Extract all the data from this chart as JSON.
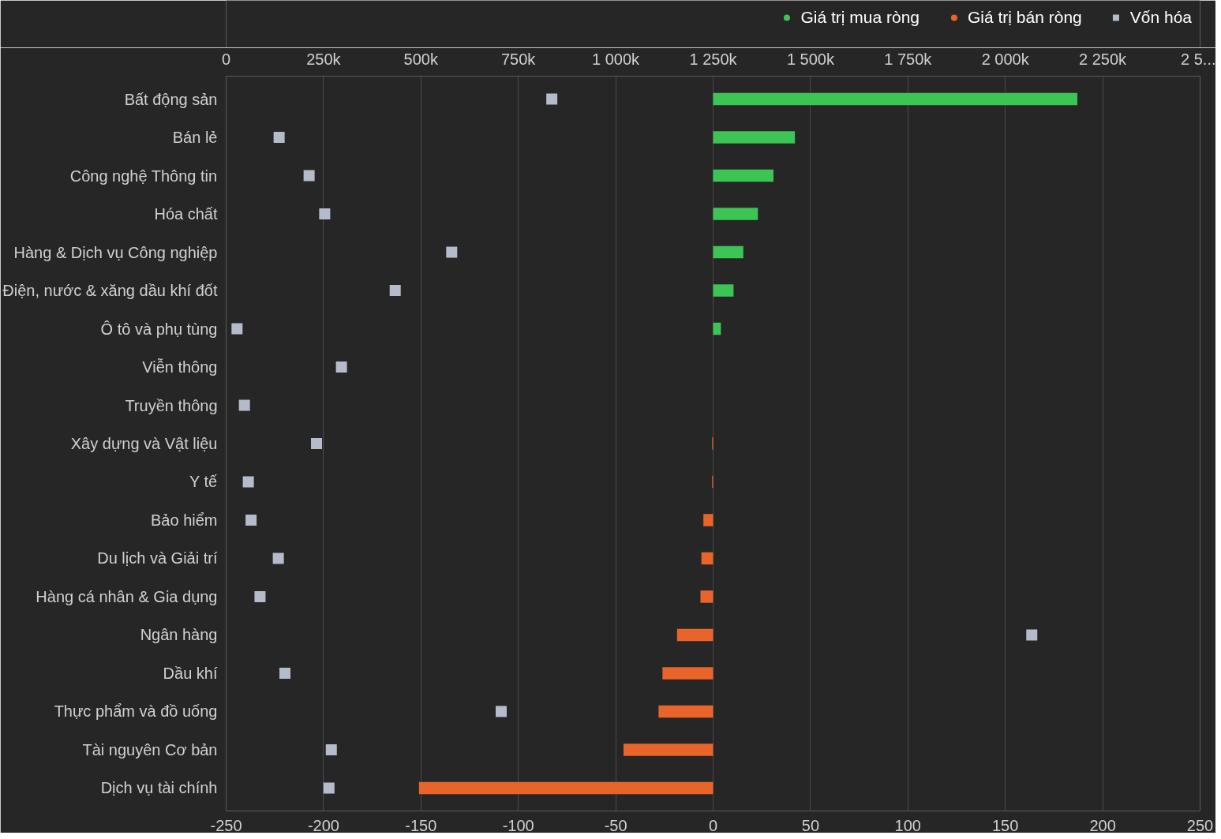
{
  "chart_data": {
    "type": "bar",
    "orientation": "horizontal",
    "legend": "top right",
    "grid": "x",
    "categories": [
      "Bất động sản",
      "Bán lẻ",
      "Công nghệ Thông tin",
      "Hóa chất",
      "Hàng & Dịch vụ Công nghiệp",
      "Điện, nước & xăng dầu khí đốt",
      "Ô tô và phụ tùng",
      "Viễn thông",
      "Truyền thông",
      "Xây dựng và Vật liệu",
      "Y tế",
      "Bảo hiểm",
      "Du lịch và Giải trí",
      "Hàng cá nhân & Gia dụng",
      "Ngân hàng",
      "Dầu khí",
      "Thực phẩm và đồ uống",
      "Tài nguyên Cơ bản",
      "Dịch vụ tài chính"
    ],
    "xlim": [
      -250,
      250
    ],
    "xticks": [
      -250,
      -200,
      -150,
      -100,
      -50,
      0,
      50,
      100,
      150,
      200,
      250
    ],
    "x2lim": [
      0,
      2500000
    ],
    "x2ticks": [
      {
        "value": 0,
        "label": "0"
      },
      {
        "value": 250000,
        "label": "250k"
      },
      {
        "value": 500000,
        "label": "500k"
      },
      {
        "value": 750000,
        "label": "750k"
      },
      {
        "value": 1000000,
        "label": "1 000k"
      },
      {
        "value": 1250000,
        "label": "1 250k"
      },
      {
        "value": 1500000,
        "label": "1 500k"
      },
      {
        "value": 1750000,
        "label": "1 750k"
      },
      {
        "value": 2000000,
        "label": "2 000k"
      },
      {
        "value": 2250000,
        "label": "2 250k"
      },
      {
        "value": 2500000,
        "label": "2 5..."
      }
    ],
    "series": [
      {
        "name": "Giá trị mua ròng",
        "color": "#3cc454",
        "values": [
          187,
          42,
          31,
          23,
          15.5,
          10.5,
          4,
          null,
          null,
          null,
          null,
          null,
          null,
          null,
          null,
          null,
          null,
          null,
          null
        ]
      },
      {
        "name": "Giá trị bán ròng",
        "color": "#e8642a",
        "values": [
          null,
          null,
          null,
          null,
          null,
          null,
          null,
          null,
          null,
          -0.5,
          -0.5,
          -5,
          -6,
          -6.5,
          -18.5,
          -26,
          -28,
          -46,
          -151
        ]
      },
      {
        "name": "Vốn hóa",
        "type": "scatter",
        "axis": "x2",
        "marker": "square",
        "color": "#b4bccc",
        "values": [
          836000,
          136000,
          213000,
          253000,
          579000,
          434000,
          28000,
          296000,
          47000,
          232000,
          57000,
          64000,
          134000,
          87000,
          2068000,
          151000,
          706000,
          270000,
          264000
        ]
      }
    ]
  }
}
